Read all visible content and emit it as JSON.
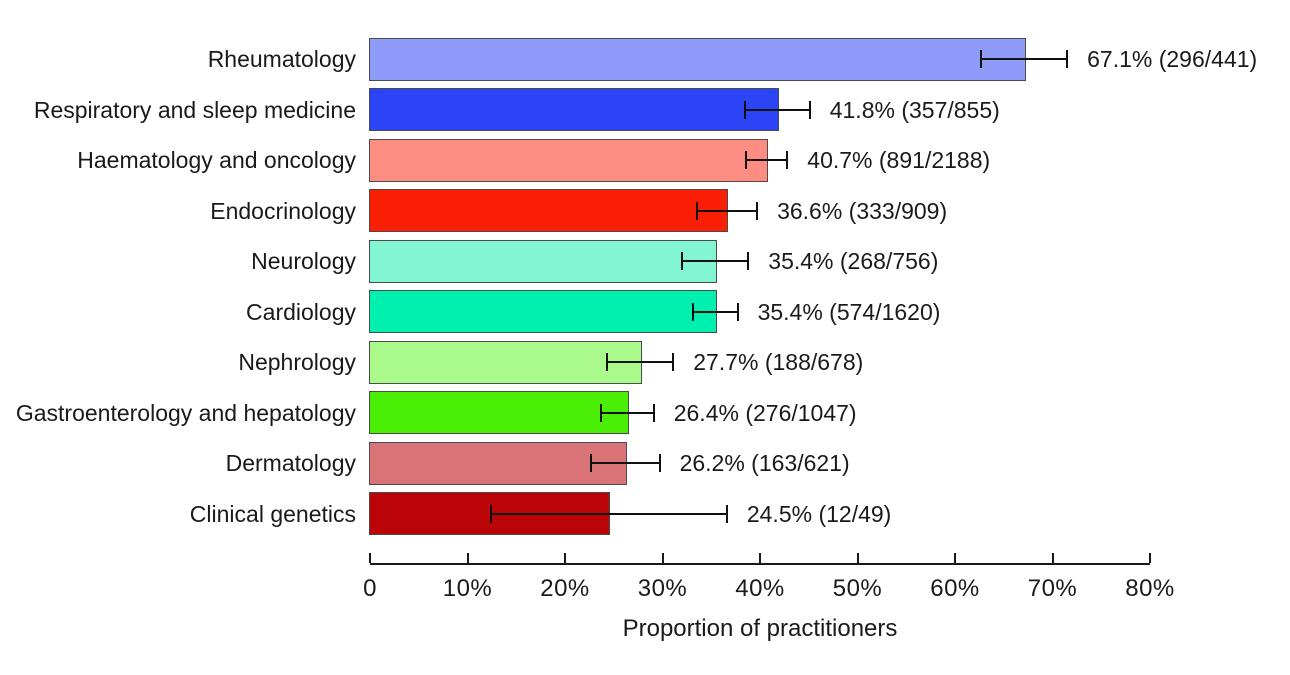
{
  "chart_data": {
    "type": "bar",
    "orientation": "horizontal",
    "title": "",
    "xlabel": "Proportion of practitioners",
    "xlim": [
      0,
      80
    ],
    "grid": false,
    "legend": false,
    "error_bars": true,
    "x_ticks": [
      {
        "value": 0,
        "label": "0"
      },
      {
        "value": 10,
        "label": "10%"
      },
      {
        "value": 20,
        "label": "20%"
      },
      {
        "value": 30,
        "label": "30%"
      },
      {
        "value": 40,
        "label": "40%"
      },
      {
        "value": 50,
        "label": "50%"
      },
      {
        "value": 60,
        "label": "60%"
      },
      {
        "value": 70,
        "label": "70%"
      },
      {
        "value": 80,
        "label": "80%"
      }
    ],
    "items": [
      {
        "category": "Rheumatology",
        "value": 67.1,
        "numerator": 296,
        "denominator": 441,
        "label": "67.1% (296/441)",
        "ci_low": 62.7,
        "ci_high": 71.5,
        "color": "#8F9BF8"
      },
      {
        "category": "Respiratory and sleep medicine",
        "value": 41.8,
        "numerator": 357,
        "denominator": 855,
        "label": "41.8% (357/855)",
        "ci_low": 38.5,
        "ci_high": 45.1,
        "color": "#2B44F5"
      },
      {
        "category": "Haematology and oncology",
        "value": 40.7,
        "numerator": 891,
        "denominator": 2188,
        "label": "40.7% (891/2188)",
        "ci_low": 38.6,
        "ci_high": 42.8,
        "color": "#FC8D80"
      },
      {
        "category": "Endocrinology",
        "value": 36.6,
        "numerator": 333,
        "denominator": 909,
        "label": "36.6% (333/909)",
        "ci_low": 33.5,
        "ci_high": 39.7,
        "color": "#FA1E05"
      },
      {
        "category": "Neurology",
        "value": 35.4,
        "numerator": 268,
        "denominator": 756,
        "label": "35.4% (268/756)",
        "ci_low": 32.0,
        "ci_high": 38.8,
        "color": "#82F6D3"
      },
      {
        "category": "Cardiology",
        "value": 35.4,
        "numerator": 574,
        "denominator": 1620,
        "label": "35.4% (574/1620)",
        "ci_low": 33.1,
        "ci_high": 37.7,
        "color": "#00F0B0"
      },
      {
        "category": "Nephrology",
        "value": 27.7,
        "numerator": 188,
        "denominator": 678,
        "label": "27.7% (188/678)",
        "ci_low": 24.3,
        "ci_high": 31.1,
        "color": "#A9FA8B"
      },
      {
        "category": "Gastroenterology and hepatology",
        "value": 26.4,
        "numerator": 276,
        "denominator": 1047,
        "label": "26.4% (276/1047)",
        "ci_low": 23.7,
        "ci_high": 29.1,
        "color": "#4BEE05"
      },
      {
        "category": "Dermatology",
        "value": 26.2,
        "numerator": 163,
        "denominator": 621,
        "label": "26.2% (163/621)",
        "ci_low": 22.7,
        "ci_high": 29.7,
        "color": "#D97479"
      },
      {
        "category": "Clinical genetics",
        "value": 24.5,
        "numerator": 12,
        "denominator": 49,
        "label": "24.5% (12/49)",
        "ci_low": 12.4,
        "ci_high": 36.6,
        "color": "#BB0407"
      }
    ],
    "colors": {
      "bar_border": "#4a4a4a",
      "error_bar": "#111111",
      "axis": "#1a1a1a",
      "text": "#1a1a1a",
      "background": "#ffffff"
    }
  }
}
